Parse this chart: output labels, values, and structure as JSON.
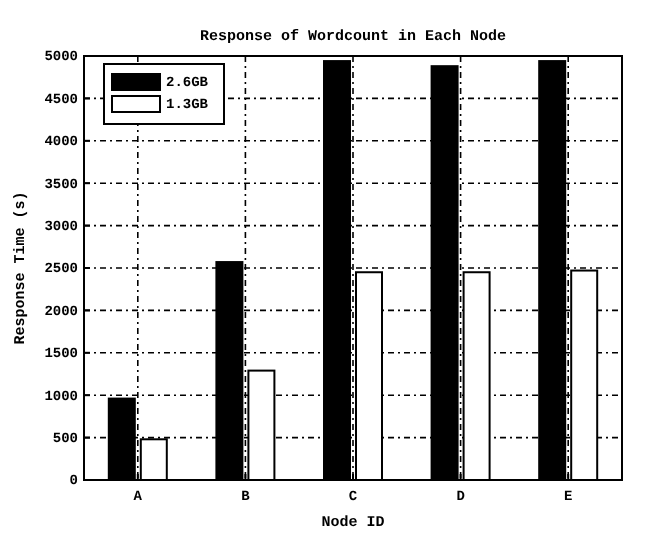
{
  "chart_data": {
    "type": "bar",
    "title": "Response of Wordcount in Each Node",
    "xlabel": "Node ID",
    "ylabel": "Response Time (s)",
    "categories": [
      "A",
      "B",
      "C",
      "D",
      "E"
    ],
    "series": [
      {
        "name": "2.6GB",
        "color": "#000000",
        "values": [
          960,
          2570,
          4940,
          4880,
          4940
        ]
      },
      {
        "name": "1.3GB",
        "color": "#ffffff",
        "values": [
          480,
          1290,
          2450,
          2450,
          2470
        ]
      }
    ],
    "ylim": [
      0,
      5000
    ],
    "yticks": [
      0,
      500,
      1000,
      1500,
      2000,
      2500,
      3000,
      3500,
      4000,
      4500,
      5000
    ],
    "grid": true,
    "legend": "top left"
  }
}
